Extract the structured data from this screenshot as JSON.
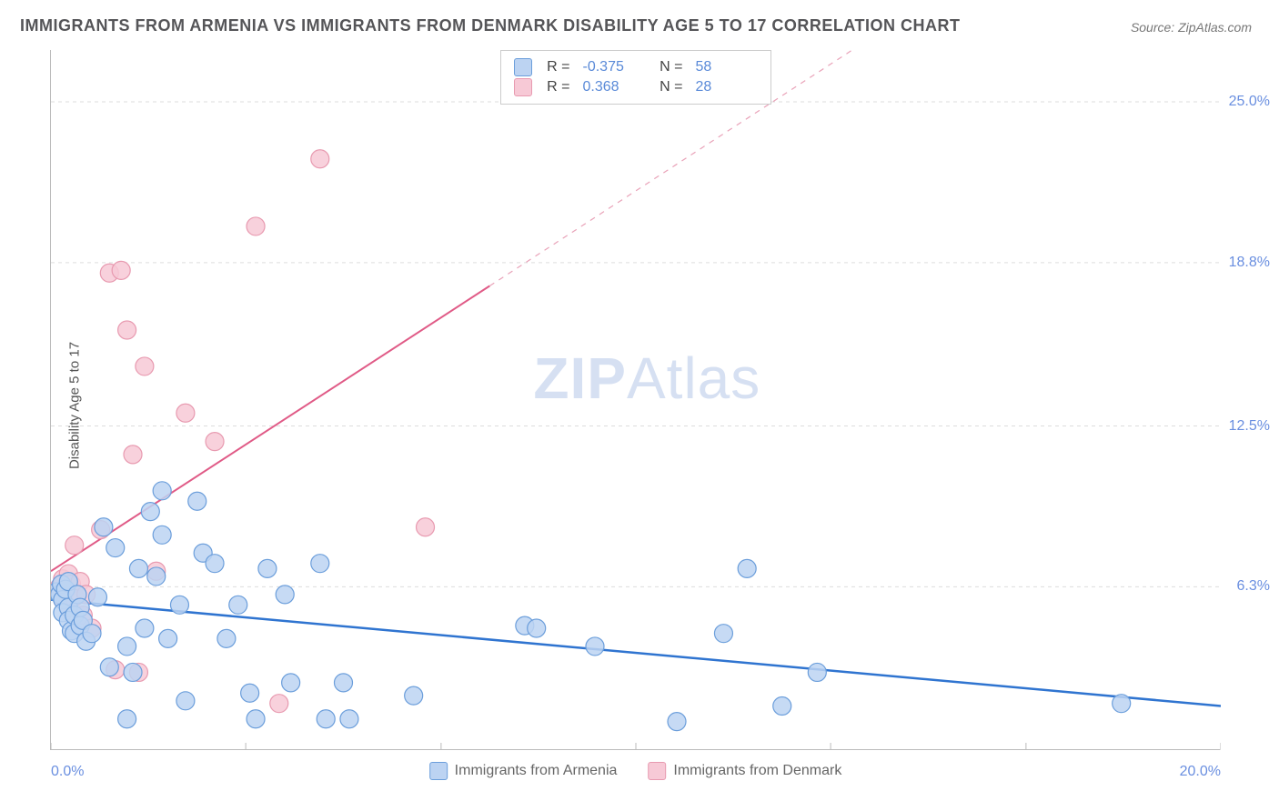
{
  "title": "IMMIGRANTS FROM ARMENIA VS IMMIGRANTS FROM DENMARK DISABILITY AGE 5 TO 17 CORRELATION CHART",
  "source": "Source: ZipAtlas.com",
  "yaxis_label": "Disability Age 5 to 17",
  "watermark": {
    "bold": "ZIP",
    "rest": "Atlas"
  },
  "chart": {
    "type": "scatter-correlation",
    "background_color": "#ffffff",
    "grid_color": "#dddddd",
    "axis_color": "#bbbbbb",
    "tick_color": "#bbbbbb",
    "xlim": [
      0.0,
      20.0
    ],
    "ylim": [
      0.0,
      27.0
    ],
    "ytick_positions": [
      6.3,
      12.5,
      18.8,
      25.0
    ],
    "ytick_labels": [
      "6.3%",
      "12.5%",
      "18.8%",
      "25.0%"
    ],
    "xtick_positions": [
      0.0,
      3.33,
      6.67,
      10.0,
      13.33,
      16.67,
      20.0
    ],
    "xtick_labels_map": {
      "0": "0.0%",
      "6": "20.0%"
    },
    "marker_radius": 10,
    "marker_stroke_width": 1.2,
    "series": [
      {
        "name": "Immigrants from Armenia",
        "fill": "#bcd3f2",
        "stroke": "#6b9edb",
        "fill_opacity": 0.85,
        "trend": {
          "color": "#2f74d0",
          "width": 2.5,
          "dash": "none",
          "x1": 0,
          "y1": 5.8,
          "x2": 20,
          "y2": 1.7
        },
        "R": "-0.375",
        "N": "58",
        "points": [
          [
            0.1,
            6.1
          ],
          [
            0.15,
            6.0
          ],
          [
            0.18,
            6.4
          ],
          [
            0.2,
            5.8
          ],
          [
            0.2,
            5.3
          ],
          [
            0.25,
            6.2
          ],
          [
            0.3,
            5.5
          ],
          [
            0.3,
            6.5
          ],
          [
            0.3,
            5.0
          ],
          [
            0.35,
            4.6
          ],
          [
            0.4,
            5.2
          ],
          [
            0.4,
            4.5
          ],
          [
            0.45,
            6.0
          ],
          [
            0.5,
            5.5
          ],
          [
            0.5,
            4.8
          ],
          [
            0.55,
            5.0
          ],
          [
            0.6,
            4.2
          ],
          [
            0.7,
            4.5
          ],
          [
            0.8,
            5.9
          ],
          [
            0.9,
            8.6
          ],
          [
            1.0,
            3.2
          ],
          [
            1.1,
            7.8
          ],
          [
            1.3,
            4.0
          ],
          [
            1.3,
            1.2
          ],
          [
            1.4,
            3.0
          ],
          [
            1.5,
            7.0
          ],
          [
            1.6,
            4.7
          ],
          [
            1.7,
            9.2
          ],
          [
            1.8,
            6.7
          ],
          [
            1.9,
            8.3
          ],
          [
            1.9,
            10.0
          ],
          [
            2.0,
            4.3
          ],
          [
            2.2,
            5.6
          ],
          [
            2.3,
            1.9
          ],
          [
            2.5,
            9.6
          ],
          [
            2.6,
            7.6
          ],
          [
            2.8,
            7.2
          ],
          [
            3.0,
            4.3
          ],
          [
            3.2,
            5.6
          ],
          [
            3.4,
            2.2
          ],
          [
            3.5,
            1.2
          ],
          [
            3.7,
            7.0
          ],
          [
            4.0,
            6.0
          ],
          [
            4.1,
            2.6
          ],
          [
            4.6,
            7.2
          ],
          [
            4.7,
            1.2
          ],
          [
            5.0,
            2.6
          ],
          [
            5.1,
            1.2
          ],
          [
            6.2,
            2.1
          ],
          [
            8.1,
            4.8
          ],
          [
            8.3,
            4.7
          ],
          [
            9.3,
            4.0
          ],
          [
            10.7,
            1.1
          ],
          [
            11.5,
            4.5
          ],
          [
            11.9,
            7.0
          ],
          [
            12.5,
            1.7
          ],
          [
            13.1,
            3.0
          ],
          [
            18.3,
            1.8
          ]
        ]
      },
      {
        "name": "Immigrants from Denmark",
        "fill": "#f7c9d6",
        "stroke": "#e89ab0",
        "fill_opacity": 0.85,
        "trend": {
          "color": "#e05b87",
          "width": 2,
          "dash": "none",
          "x1": 0,
          "y1": 6.9,
          "x2": 7.5,
          "y2": 17.9
        },
        "trend_ext": {
          "color": "#e9a2b8",
          "width": 1.2,
          "dash": "6,6",
          "x1": 7.5,
          "y1": 17.9,
          "x2": 13.7,
          "y2": 27.0
        },
        "R": "0.368",
        "N": "28",
        "points": [
          [
            0.15,
            6.3
          ],
          [
            0.2,
            6.6
          ],
          [
            0.2,
            5.8
          ],
          [
            0.25,
            6.1
          ],
          [
            0.3,
            6.8
          ],
          [
            0.3,
            5.5
          ],
          [
            0.35,
            6.4
          ],
          [
            0.4,
            5.9
          ],
          [
            0.4,
            7.9
          ],
          [
            0.5,
            6.5
          ],
          [
            0.55,
            5.2
          ],
          [
            0.6,
            6.0
          ],
          [
            0.7,
            4.7
          ],
          [
            0.85,
            8.5
          ],
          [
            1.0,
            18.4
          ],
          [
            1.1,
            3.1
          ],
          [
            1.2,
            18.5
          ],
          [
            1.3,
            16.2
          ],
          [
            1.4,
            11.4
          ],
          [
            1.5,
            3.0
          ],
          [
            1.6,
            14.8
          ],
          [
            1.8,
            6.9
          ],
          [
            2.3,
            13.0
          ],
          [
            2.8,
            11.9
          ],
          [
            3.5,
            20.2
          ],
          [
            3.9,
            1.8
          ],
          [
            4.6,
            22.8
          ],
          [
            6.4,
            8.6
          ]
        ]
      }
    ],
    "legend_top_swatches": [
      "#bcd3f2",
      "#f7c9d6"
    ],
    "legend_bottom": [
      {
        "label": "Immigrants from Armenia",
        "color": "#bcd3f2",
        "stroke": "#6b9edb"
      },
      {
        "label": "Immigrants from Denmark",
        "color": "#f7c9d6",
        "stroke": "#e89ab0"
      }
    ],
    "value_color": "#5a8ad8",
    "label_color": "#444444"
  }
}
